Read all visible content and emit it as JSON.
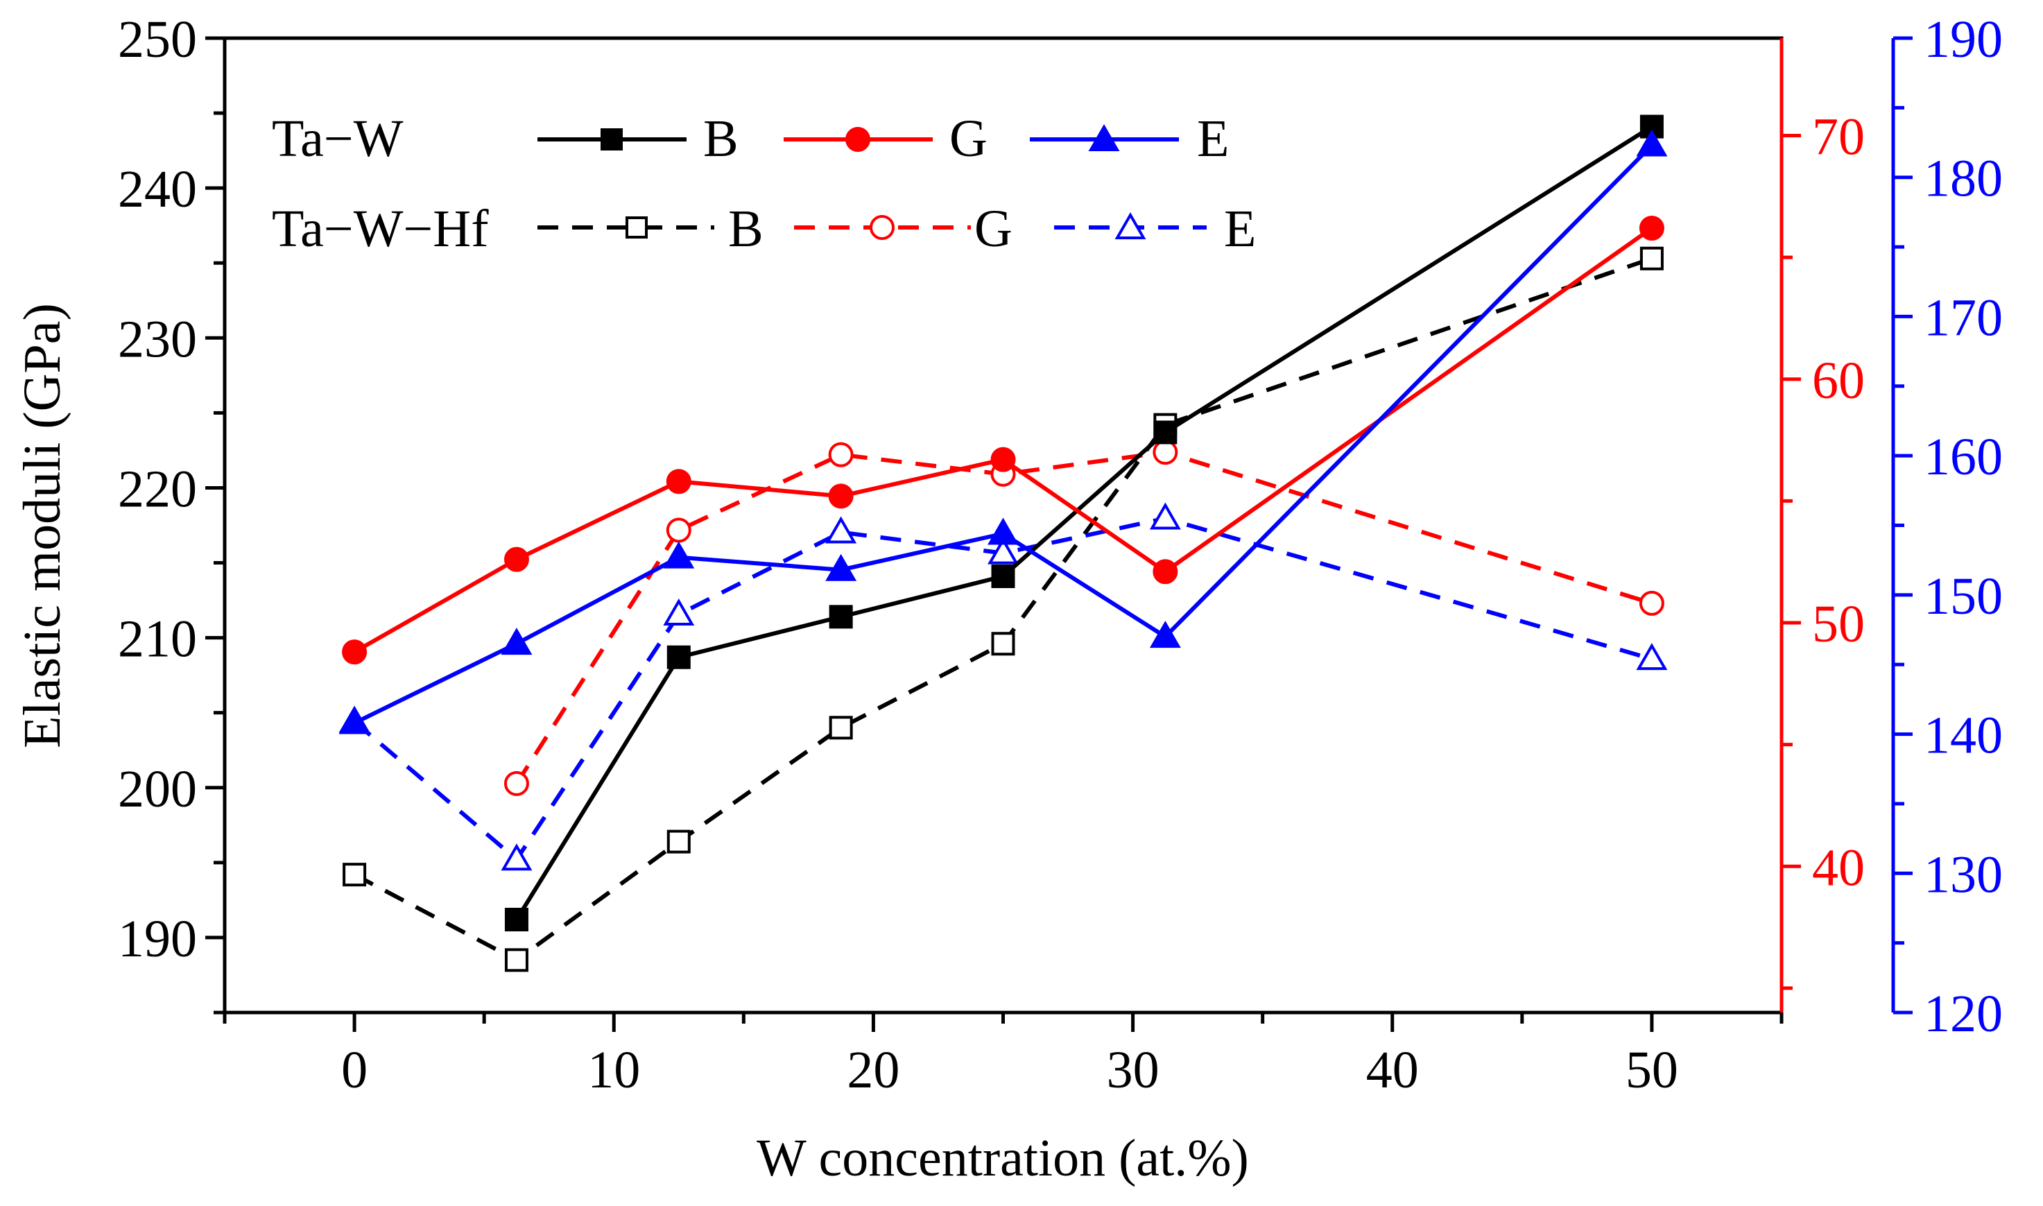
{
  "chart_data": {
    "type": "line",
    "xlabel": "W concentration (at.%)",
    "ylabel": "Elastic moduli (GPa)",
    "x_axis": {
      "range": [
        -5,
        55
      ],
      "ticks": [
        0,
        10,
        20,
        30,
        40,
        50
      ],
      "tick_labels": [
        "0",
        "10",
        "20",
        "30",
        "40",
        "50"
      ]
    },
    "y_left": {
      "range": [
        185,
        250
      ],
      "ticks": [
        190,
        200,
        210,
        220,
        230,
        240,
        250
      ],
      "tick_labels": [
        "190",
        "200",
        "210",
        "220",
        "230",
        "240",
        "250"
      ],
      "color": "#000000"
    },
    "y_right_red": {
      "range": [
        34,
        74
      ],
      "ticks": [
        40,
        50,
        60,
        70
      ],
      "tick_labels": [
        "40",
        "50",
        "60",
        "70"
      ],
      "color": "#ff0000"
    },
    "y_right_blue": {
      "range": [
        120,
        190
      ],
      "ticks": [
        120,
        130,
        140,
        150,
        160,
        170,
        180,
        190
      ],
      "tick_labels": [
        "120",
        "130",
        "140",
        "150",
        "160",
        "170",
        "180",
        "190"
      ],
      "color": "#0000ff"
    },
    "legend": {
      "position": "top-left",
      "rows": [
        {
          "label": "Ta−W",
          "entries": [
            "B",
            "G",
            "E"
          ]
        },
        {
          "label": "Ta−W−Hf",
          "entries": [
            "B",
            "G",
            "E"
          ]
        }
      ]
    },
    "series": [
      {
        "name": "Ta−W B",
        "axis": "left",
        "color": "#000000",
        "dash": "solid",
        "marker": "square",
        "filled": true,
        "x": [
          6.25,
          12.5,
          18.75,
          25,
          31.25,
          50
        ],
        "values": [
          191.2,
          208.7,
          211.4,
          214.1,
          223.7,
          244.1
        ]
      },
      {
        "name": "Ta−W G",
        "axis": "red",
        "color": "#ff0000",
        "dash": "solid",
        "marker": "circle",
        "filled": true,
        "x": [
          0,
          6.25,
          12.5,
          18.75,
          25,
          31.25,
          50
        ],
        "values": [
          48.8,
          52.6,
          55.8,
          55.2,
          56.7,
          52.1,
          66.2
        ]
      },
      {
        "name": "Ta−W E",
        "axis": "blue",
        "color": "#0000ff",
        "dash": "solid",
        "marker": "triangle",
        "filled": true,
        "x": [
          0,
          6.25,
          12.5,
          18.75,
          25,
          31.25,
          50
        ],
        "values": [
          140.8,
          146.5,
          152.7,
          151.8,
          154.4,
          147.0,
          182.3
        ]
      },
      {
        "name": "Ta−W−Hf B",
        "axis": "left",
        "color": "#000000",
        "dash": "dashed",
        "marker": "square",
        "filled": false,
        "x": [
          0,
          6.25,
          12.5,
          18.75,
          25,
          31.25,
          50
        ],
        "values": [
          194.2,
          188.5,
          196.4,
          204.0,
          209.6,
          224.2,
          235.3
        ]
      },
      {
        "name": "Ta−W−Hf G",
        "axis": "red",
        "color": "#ff0000",
        "dash": "dashed",
        "marker": "circle",
        "filled": false,
        "x": [
          6.25,
          12.5,
          18.75,
          25,
          31.25,
          50
        ],
        "values": [
          43.4,
          53.8,
          56.9,
          56.1,
          57.0,
          50.8
        ]
      },
      {
        "name": "Ta−W−Hf E",
        "axis": "blue",
        "color": "#0000ff",
        "dash": "dashed",
        "marker": "triangle",
        "filled": false,
        "x": [
          0,
          6.25,
          12.5,
          18.75,
          25,
          31.25,
          50
        ],
        "values": [
          140.9,
          131.0,
          148.6,
          154.5,
          153.0,
          155.5,
          145.4
        ]
      }
    ]
  }
}
